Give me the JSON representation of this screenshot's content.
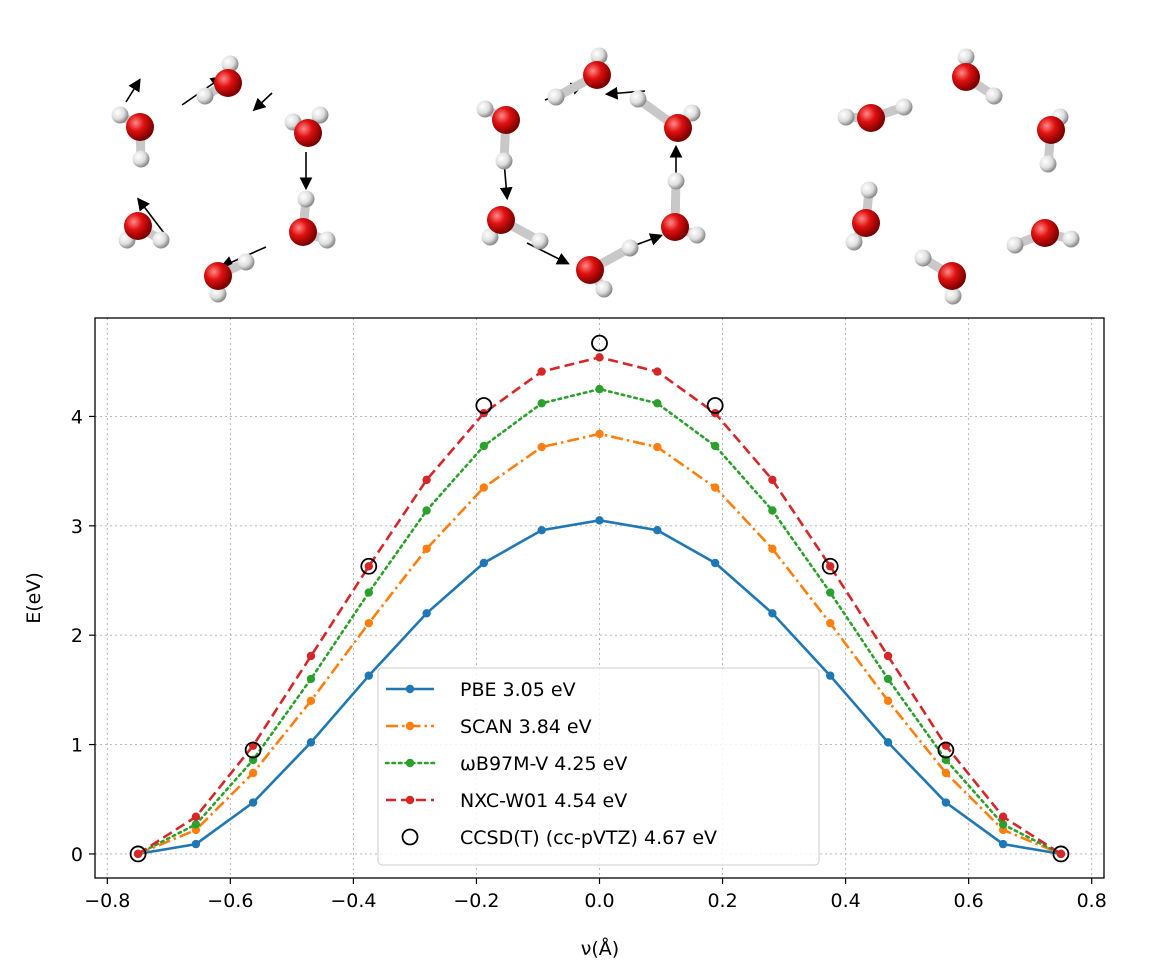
{
  "chart_data": {
    "type": "line",
    "xlabel": "ν(Å)",
    "ylabel": "E(eV)",
    "xlim": [
      -0.82,
      0.82
    ],
    "ylim": [
      -0.22,
      4.9
    ],
    "xticks": [
      "−0.8",
      "−0.6",
      "−0.4",
      "−0.2",
      "0.0",
      "0.2",
      "0.4",
      "0.6",
      "0.8"
    ],
    "yticks": [
      "0",
      "1",
      "2",
      "3",
      "4"
    ],
    "grid": true,
    "legend_position": "lower-center",
    "series": [
      {
        "name": "PBE 3.05 eV",
        "color": "#1f77b4",
        "linestyle": "solid",
        "marker": "dot",
        "x": [
          -0.75,
          -0.656,
          -0.563,
          -0.469,
          -0.375,
          -0.281,
          -0.188,
          -0.094,
          0.0,
          0.094,
          0.188,
          0.281,
          0.375,
          0.469,
          0.563,
          0.656,
          0.75
        ],
        "y": [
          0.0,
          0.09,
          0.47,
          1.02,
          1.63,
          2.2,
          2.66,
          2.96,
          3.05,
          2.96,
          2.66,
          2.2,
          1.63,
          1.02,
          0.47,
          0.09,
          0.0
        ]
      },
      {
        "name": "SCAN 3.84 eV",
        "color": "#ff7f0e",
        "linestyle": "dashdot",
        "marker": "dot",
        "x": [
          -0.75,
          -0.656,
          -0.563,
          -0.469,
          -0.375,
          -0.281,
          -0.188,
          -0.094,
          0.0,
          0.094,
          0.188,
          0.281,
          0.375,
          0.469,
          0.563,
          0.656,
          0.75
        ],
        "y": [
          0.0,
          0.22,
          0.74,
          1.4,
          2.11,
          2.79,
          3.35,
          3.72,
          3.84,
          3.72,
          3.35,
          2.79,
          2.11,
          1.4,
          0.74,
          0.22,
          0.0
        ]
      },
      {
        "name": "ωB97M-V 4.25 eV",
        "color": "#2ca02c",
        "linestyle": "dotted",
        "marker": "dot",
        "x": [
          -0.75,
          -0.656,
          -0.563,
          -0.469,
          -0.375,
          -0.281,
          -0.188,
          -0.094,
          0.0,
          0.094,
          0.188,
          0.281,
          0.375,
          0.469,
          0.563,
          0.656,
          0.75
        ],
        "y": [
          0.0,
          0.27,
          0.86,
          1.6,
          2.39,
          3.14,
          3.73,
          4.12,
          4.25,
          4.12,
          3.73,
          3.14,
          2.39,
          1.6,
          0.86,
          0.27,
          0.0
        ]
      },
      {
        "name": "NXC-W01 4.54 eV",
        "color": "#d62728",
        "linestyle": "dashed",
        "marker": "dot",
        "x": [
          -0.75,
          -0.656,
          -0.563,
          -0.469,
          -0.375,
          -0.281,
          -0.188,
          -0.094,
          0.0,
          0.094,
          0.188,
          0.281,
          0.375,
          0.469,
          0.563,
          0.656,
          0.75
        ],
        "y": [
          0.0,
          0.34,
          0.99,
          1.81,
          2.63,
          3.42,
          4.03,
          4.41,
          4.54,
          4.41,
          4.03,
          3.42,
          2.63,
          1.81,
          0.99,
          0.34,
          0.0
        ]
      },
      {
        "name": "CCSD(T) (cc-pVTZ) 4.67 eV",
        "color": "#000000",
        "linestyle": "none",
        "marker": "open-circle",
        "x": [
          -0.75,
          -0.563,
          -0.375,
          -0.188,
          0.0,
          0.188,
          0.375,
          0.563,
          0.75
        ],
        "y": [
          0.0,
          0.95,
          2.63,
          4.1,
          4.67,
          4.1,
          2.63,
          0.95,
          0.0
        ]
      }
    ]
  },
  "structures": {
    "oxygen_color": "#d40000",
    "hydrogen_color": "#e6e6e6",
    "arrow_color": "#000000"
  }
}
